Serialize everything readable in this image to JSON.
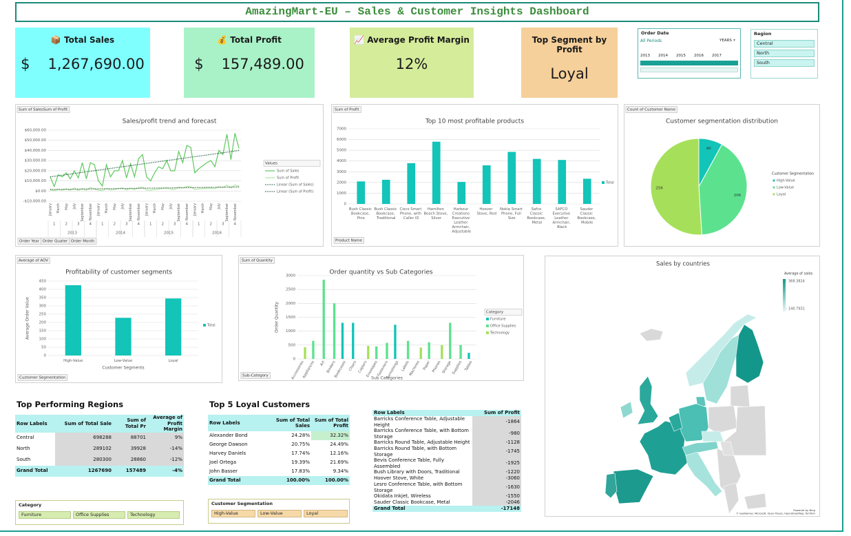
{
  "header": {
    "title": "AmazingMart-EU – Sales & Customer Insights Dashboard"
  },
  "kpis": [
    {
      "label": "📦 Total Sales",
      "currency": "$",
      "value": "1,267,690.00",
      "color": "#80ffff"
    },
    {
      "label": "💰 Total Profit",
      "currency": "$",
      "value": "157,489.00",
      "color": "#a9f2c8"
    },
    {
      "label": "📈 Average Profit Margin",
      "value": "12%",
      "color": "#d5ec9b"
    },
    {
      "label": "Top Segment by Profit",
      "value": "Loyal",
      "color": "#f6d09a"
    }
  ],
  "slicers": {
    "order_date": {
      "title": "Order Date",
      "selection": "All Periods",
      "level": "YEARS",
      "years": [
        "2013",
        "2014",
        "2015",
        "2016",
        "2017"
      ]
    },
    "region": {
      "title": "Region",
      "items": [
        "Central",
        "North",
        "South"
      ]
    },
    "category": {
      "title": "Category",
      "items": [
        "Furniture",
        "Office Supplies",
        "Technology"
      ]
    },
    "segmentation": {
      "title": "Customer Segmentation",
      "items": [
        "High-Value",
        "Low-Value",
        "Loyal"
      ]
    }
  },
  "chart_data": [
    {
      "type": "line",
      "field_button": "Sum of SalesSum of Profit",
      "title": "Sales/profit trend and forecast",
      "axis_fields": [
        "Order Year",
        "Order Quater",
        "Order Month"
      ],
      "categories": [
        "January",
        null,
        "March",
        null,
        "May",
        null,
        "July",
        null,
        "September",
        null,
        "November",
        null,
        "January",
        null,
        "March",
        null,
        "May",
        null,
        "July",
        null,
        "September",
        null,
        "November",
        null,
        "January",
        null,
        "March",
        null,
        "May",
        null,
        "July",
        null,
        "September",
        null,
        "November",
        null,
        "January",
        null,
        "March",
        null,
        "May",
        null,
        "July",
        null,
        "September",
        null,
        "November",
        null
      ],
      "quarters": [
        "1",
        "2",
        "3",
        "4"
      ],
      "years": [
        "2013",
        "2014",
        "2015",
        "2016"
      ],
      "ylim": [
        -10000,
        60000
      ],
      "yticks": [
        {
          "value": -10000,
          "label": "-$10,000.00"
        },
        {
          "value": 0,
          "label": "$0.00"
        },
        {
          "value": 10000,
          "label": "$10,000.00"
        },
        {
          "value": 20000,
          "label": "$20,000.00"
        },
        {
          "value": 30000,
          "label": "$30,000.00"
        },
        {
          "value": 40000,
          "label": "$40,000.00"
        },
        {
          "value": 50000,
          "label": "$50,000.00"
        },
        {
          "value": 60000,
          "label": "$60,000.00"
        }
      ],
      "grid": true,
      "legend_title": "Values",
      "series": [
        {
          "name": "Sum of Sales",
          "color": "#5cc85c",
          "values": [
            14000,
            4500,
            16000,
            14000,
            18000,
            12000,
            20000,
            13000,
            28000,
            12000,
            28000,
            26000,
            10000,
            5000,
            26000,
            14000,
            20000,
            20000,
            30000,
            13000,
            27000,
            14000,
            32000,
            36000,
            14000,
            10000,
            18000,
            24000,
            22000,
            30000,
            20000,
            20000,
            39000,
            28000,
            45000,
            43000,
            18000,
            22000,
            25000,
            28000,
            30000,
            24000,
            40000,
            36000,
            56000,
            31000,
            57000,
            42000
          ]
        },
        {
          "name": "Sum of Profit",
          "color": "#a8e8a0",
          "values": [
            1200,
            300,
            1500,
            900,
            2200,
            800,
            3000,
            600,
            2500,
            700,
            3500,
            2000,
            800,
            400,
            2400,
            1000,
            1500,
            2600,
            3200,
            1000,
            2800,
            1400,
            3400,
            3800,
            1000,
            900,
            1500,
            2000,
            2500,
            3100,
            1800,
            1600,
            4000,
            2900,
            4500,
            4200,
            1600,
            2100,
            2500,
            2900,
            3000,
            2200,
            4300,
            3500,
            5800,
            3100,
            6000,
            4500
          ]
        }
      ],
      "trends": [
        {
          "name": "Linear (Sum of Sales)",
          "color": "#1e5e3c",
          "start": 14000,
          "end": 40000
        },
        {
          "name": "Linear (Sum of Profit)",
          "color": "#2f4f2f",
          "start": 1500,
          "end": 4000
        }
      ]
    },
    {
      "type": "bar",
      "field_button": "Sum of Profit",
      "title": "Top 10 most profitable products",
      "axis_field": "Product Name",
      "categories": [
        "Bush Classic Bookcase, Pine",
        "Bush Classic Bookcase, Traditional",
        "Cisco Smart Phone, with Caller ID",
        "Hamilton Beach Stove, Silver",
        "Harbour Creations Executive Leather Armchair, Adjustable",
        "Hoover Stove, Red",
        "Nokia Smart Phone, Full Size",
        "Safco Classic Bookcase, Metal",
        "SAFCO Executive Leather Armchair, Black",
        "Sauder Classic Bookcase, Mobile"
      ],
      "values": [
        2100,
        2250,
        3800,
        5800,
        2050,
        3600,
        4850,
        4200,
        4100,
        2350
      ],
      "color": "#13c4b8",
      "series_label": "Total",
      "ylim": [
        0,
        7000
      ],
      "yticks": [
        0,
        1000,
        2000,
        3000,
        4000,
        5000,
        6000,
        7000
      ],
      "grid": true
    },
    {
      "type": "pie",
      "field_button": "Count of Customer Name",
      "title": "Customer segmentation distribution",
      "legend_title": "Customer Segmentation",
      "categories": [
        "High-Value",
        "Low-Value",
        "Loyal"
      ],
      "values": [
        40,
        206,
        256
      ],
      "colors": [
        "#13c4b8",
        "#5ce28f",
        "#a6e05a"
      ]
    },
    {
      "type": "bar",
      "field_button": "Average of AOV",
      "title": "Profitability of customer segments",
      "axis_field": "Customer Segmentation",
      "ylabel": "Average Order Value",
      "xlabel": "Customer Segments",
      "categories": [
        "High-Value",
        "Low-Value",
        "Loyal"
      ],
      "values": [
        425,
        228,
        345
      ],
      "color": "#13c4b8",
      "series_label": "Total",
      "ylim": [
        0,
        450
      ],
      "yticks": [
        0,
        50,
        100,
        150,
        200,
        250,
        300,
        350,
        400,
        450
      ],
      "grid": true
    },
    {
      "type": "grouped_bar",
      "field_button": "Sum of Quantity",
      "title": "Order quantity vs Sub Categories",
      "axis_field": "Sub-Category",
      "ylabel": "Order Quantity",
      "xlabel": "Sub Categories",
      "legend_title": "Category",
      "categories": [
        "Accessories",
        "Appliances",
        "Art",
        "Binders",
        "Bookcases",
        "Chairs",
        "Copiers",
        "Envelopes",
        "Fasteners",
        "Furnishings",
        "Labels",
        "Machines",
        "Paper",
        "Phones",
        "Storage",
        "Supplies",
        "Tables"
      ],
      "series": [
        {
          "name": "Furniture",
          "color": "#13c4b8",
          "values": [
            null,
            null,
            null,
            null,
            1300,
            1300,
            null,
            null,
            null,
            1230,
            null,
            null,
            null,
            null,
            null,
            null,
            220
          ]
        },
        {
          "name": "Office Supplies",
          "color": "#5ce28f",
          "values": [
            null,
            650,
            2850,
            2000,
            null,
            null,
            null,
            450,
            580,
            null,
            650,
            null,
            600,
            null,
            1300,
            500,
            null
          ]
        },
        {
          "name": "Technology",
          "color": "#a6e05a",
          "values": [
            420,
            null,
            null,
            null,
            null,
            null,
            470,
            null,
            null,
            null,
            null,
            410,
            null,
            500,
            null,
            null,
            null
          ]
        }
      ],
      "ylim": [
        0,
        3000
      ],
      "yticks": [
        0,
        500,
        1000,
        1500,
        2000,
        2500,
        3000
      ],
      "grid": true
    },
    {
      "type": "map",
      "title": "Sales by countries",
      "legend_title": "Average of sales",
      "color_scale": [
        140.7931,
        368.3824
      ],
      "credit_logo": "Powered by Bing",
      "credit": "© GeoNames, Microsoft, Open Places, OpenStreetMap, TomTom"
    }
  ],
  "tables": {
    "regions": {
      "title": "Top Performing Regions",
      "columns": [
        "Row Labels",
        "Sum of Total Sale",
        "Sum of Total Pr",
        "Average of Profit Margin"
      ],
      "rows": [
        [
          "Central",
          "698288",
          "88701",
          "9%"
        ],
        [
          "North",
          "289102",
          "39928",
          "-14%"
        ],
        [
          "South",
          "280300",
          "28860",
          "-12%"
        ],
        [
          "Grand Total",
          "1267690",
          "157489",
          "-4%"
        ]
      ]
    },
    "loyal_customers": {
      "title": "Top 5 Loyal Customers",
      "columns": [
        "Row Labels",
        "Sum of Total Sales",
        "Sum of Total Profit"
      ],
      "rows": [
        [
          "Alexander Bond",
          "24.28%",
          "32.32%"
        ],
        [
          "George Dawson",
          "20.75%",
          "24.49%"
        ],
        [
          "Harvey Daniels",
          "17.74%",
          "12.16%"
        ],
        [
          "Joel Ortega",
          "19.39%",
          "21.69%"
        ],
        [
          "John Basser",
          "17.83%",
          "9.34%"
        ],
        [
          "Grand Total",
          "100.00%",
          "100.00%"
        ]
      ]
    },
    "loss_products": {
      "columns": [
        "Row Labels",
        "Sum of Profit"
      ],
      "rows": [
        [
          "Barricks Conference Table, Adjustable Height",
          "-1864"
        ],
        [
          "Barricks Conference Table, with Bottom Storage",
          "-980"
        ],
        [
          "Barricks Round Table, Adjustable Height",
          "-1128"
        ],
        [
          "Barricks Round Table, with Bottom Storage",
          "-1745"
        ],
        [
          "Bevis Conference Table, Fully Assembled",
          "-1925"
        ],
        [
          "Bush Library with Doors, Traditional",
          "-1220"
        ],
        [
          "Hoover Stove, White",
          "-3060"
        ],
        [
          "Lesro Conference Table, with Bottom Storage",
          "-1630"
        ],
        [
          "Okidata Inkjet, Wireless",
          "-1550"
        ],
        [
          "Sauder Classic Bookcase, Metal",
          "-2046"
        ],
        [
          "Grand Total",
          "-17148"
        ]
      ]
    }
  }
}
